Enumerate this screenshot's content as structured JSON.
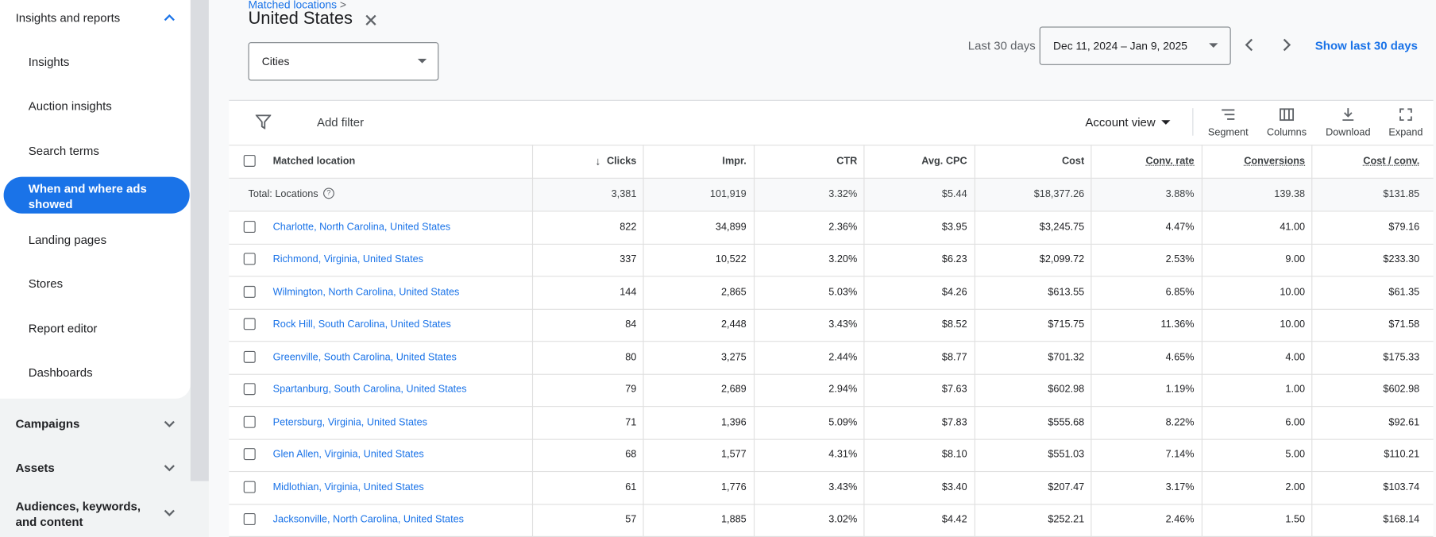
{
  "sidebar": {
    "section": "Insights and reports",
    "items": [
      "Insights",
      "Auction insights",
      "Search terms",
      "When and where ads showed",
      "Landing pages",
      "Stores",
      "Report editor",
      "Dashboards"
    ],
    "sections": [
      "Campaigns",
      "Assets",
      "Audiences, keywords, and content"
    ]
  },
  "header": {
    "breadcrumb": "Matched locations",
    "title": "United States",
    "dropdown": "Cities",
    "date_label": "Last 30 days",
    "date_range": "Dec 11, 2024 – Jan 9, 2025",
    "link": "Show last 30 days"
  },
  "toolbar": {
    "filter": "Add filter",
    "view": "Account view",
    "buttons": [
      "Segment",
      "Columns",
      "Download",
      "Expand"
    ]
  },
  "table": {
    "columns": [
      "Matched location",
      "Clicks",
      "Impr.",
      "CTR",
      "Avg. CPC",
      "Cost",
      "Conv. rate",
      "Conversions",
      "Cost / conv."
    ],
    "total": [
      "Total: Locations",
      "3,381",
      "101,919",
      "3.32%",
      "$5.44",
      "$18,377.26",
      "3.88%",
      "139.38",
      "$131.85"
    ],
    "rows": [
      [
        "Charlotte, North Carolina, United States",
        "822",
        "34,899",
        "2.36%",
        "$3.95",
        "$3,245.75",
        "4.47%",
        "41.00",
        "$79.16"
      ],
      [
        "Richmond, Virginia, United States",
        "337",
        "10,522",
        "3.20%",
        "$6.23",
        "$2,099.72",
        "2.53%",
        "9.00",
        "$233.30"
      ],
      [
        "Wilmington, North Carolina, United States",
        "144",
        "2,865",
        "5.03%",
        "$4.26",
        "$613.55",
        "6.85%",
        "10.00",
        "$61.35"
      ],
      [
        "Rock Hill, South Carolina, United States",
        "84",
        "2,448",
        "3.43%",
        "$8.52",
        "$715.75",
        "11.36%",
        "10.00",
        "$71.58"
      ],
      [
        "Greenville, South Carolina, United States",
        "80",
        "3,275",
        "2.44%",
        "$8.77",
        "$701.32",
        "4.65%",
        "4.00",
        "$175.33"
      ],
      [
        "Spartanburg, South Carolina, United States",
        "79",
        "2,689",
        "2.94%",
        "$7.63",
        "$602.98",
        "1.19%",
        "1.00",
        "$602.98"
      ],
      [
        "Petersburg, Virginia, United States",
        "71",
        "1,396",
        "5.09%",
        "$7.83",
        "$555.68",
        "8.22%",
        "6.00",
        "$92.61"
      ],
      [
        "Glen Allen, Virginia, United States",
        "68",
        "1,577",
        "4.31%",
        "$8.10",
        "$551.03",
        "7.14%",
        "5.00",
        "$110.21"
      ],
      [
        "Midlothian, Virginia, United States",
        "61",
        "1,776",
        "3.43%",
        "$3.40",
        "$207.47",
        "3.17%",
        "2.00",
        "$103.74"
      ],
      [
        "Jacksonville, North Carolina, United States",
        "57",
        "1,885",
        "3.02%",
        "$4.42",
        "$252.21",
        "2.46%",
        "1.50",
        "$168.14"
      ]
    ]
  }
}
